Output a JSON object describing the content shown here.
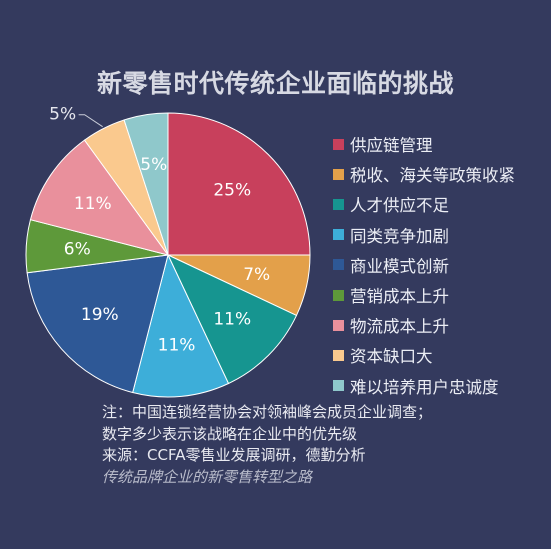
{
  "chart_data": {
    "type": "pie",
    "title": "新零售时代传统企业面临的挑战",
    "slices": [
      {
        "label": "供应链管理",
        "value": 25,
        "display": "25%",
        "color": "#c8405c"
      },
      {
        "label": "税收、海关等政策收紧",
        "value": 7,
        "display": "7%",
        "color": "#e3a04a"
      },
      {
        "label": "人才供应不足",
        "value": 11,
        "display": "11%",
        "color": "#169590"
      },
      {
        "label": "同类竞争加剧",
        "value": 11,
        "display": "11%",
        "color": "#3daed9"
      },
      {
        "label": "商业模式创新",
        "value": 19,
        "display": "19%",
        "color": "#2e5896"
      },
      {
        "label": "营销成本上升",
        "value": 6,
        "display": "6%",
        "color": "#5e993a"
      },
      {
        "label": "物流成本上升",
        "value": 11,
        "display": "11%",
        "color": "#e9909c"
      },
      {
        "label": "资本缺口大",
        "value": 5,
        "display": "5%",
        "color": "#fac98e"
      },
      {
        "label": "难以培养用户忠诚度",
        "value": 5,
        "display": "5%",
        "color": "#8fc8cb"
      }
    ],
    "legend_position": "right"
  },
  "notes": {
    "line1": "注：中国连锁经营协会对领袖峰会成员企业调查；",
    "line2": "数字多少表示该战略在企业中的优先级",
    "line3": "来源：CCFA零售业发展调研，德勤分析",
    "line4": "传统品牌企业的新零售转型之路"
  }
}
